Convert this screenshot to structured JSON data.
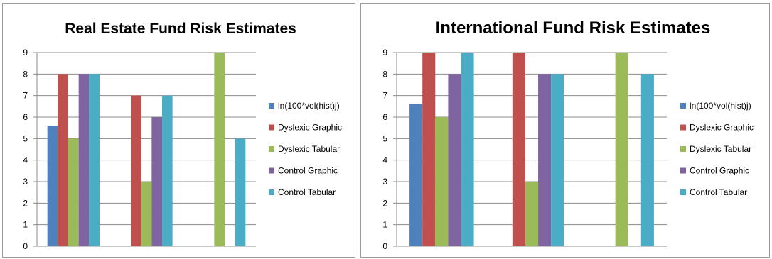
{
  "chart_data": [
    {
      "type": "bar",
      "title": "Real Estate Fund Risk Estimates",
      "xlabel": "",
      "ylabel": "",
      "ylim": [
        0,
        9
      ],
      "yticks": [
        0,
        1,
        2,
        3,
        4,
        5,
        6,
        7,
        8,
        9
      ],
      "grid": true,
      "legend_position": "right",
      "categories": [
        "",
        "",
        ""
      ],
      "series": [
        {
          "name": "ln(100*vol(hist)j)",
          "color": "#4f81bd",
          "values": [
            5.6,
            null,
            null
          ]
        },
        {
          "name": "Dyslexic Graphic",
          "color": "#c0504d",
          "values": [
            8,
            7,
            null
          ]
        },
        {
          "name": "Dyslexic Tabular",
          "color": "#9bbb59",
          "values": [
            5,
            3,
            9
          ]
        },
        {
          "name": "Control Graphic",
          "color": "#8064a2",
          "values": [
            8,
            6,
            null
          ]
        },
        {
          "name": "Control Tabular",
          "color": "#4bacc6",
          "values": [
            8,
            7,
            5
          ]
        }
      ]
    },
    {
      "type": "bar",
      "title": "International Fund Risk Estimates",
      "xlabel": "",
      "ylabel": "",
      "ylim": [
        0,
        9
      ],
      "yticks": [
        0,
        1,
        2,
        3,
        4,
        5,
        6,
        7,
        8,
        9
      ],
      "grid": true,
      "legend_position": "right",
      "categories": [
        "",
        "",
        ""
      ],
      "series": [
        {
          "name": "ln(100*vol(hist)j)",
          "color": "#4f81bd",
          "values": [
            6.6,
            null,
            null
          ]
        },
        {
          "name": "Dyslexic Graphic",
          "color": "#c0504d",
          "values": [
            9,
            9,
            null
          ]
        },
        {
          "name": "Dyslexic Tabular",
          "color": "#9bbb59",
          "values": [
            6,
            3,
            9
          ]
        },
        {
          "name": "Control Graphic",
          "color": "#8064a2",
          "values": [
            8,
            8,
            null
          ]
        },
        {
          "name": "Control Tabular",
          "color": "#4bacc6",
          "values": [
            9,
            8,
            8
          ]
        }
      ]
    }
  ]
}
